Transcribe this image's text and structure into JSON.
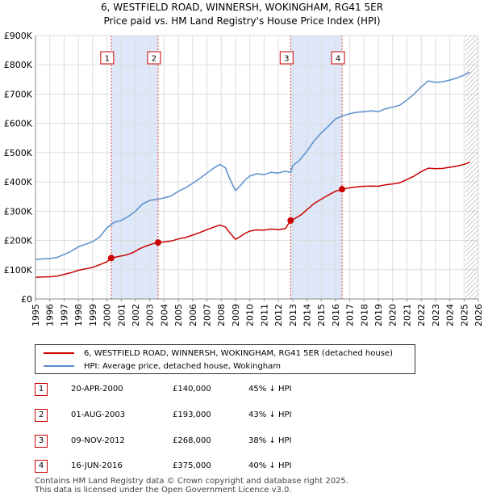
{
  "title_line1": "6, WESTFIELD ROAD, WINNERSH, WOKINGHAM, RG41 5ER",
  "title_line2": "Price paid vs. HM Land Registry's House Price Index (HPI)",
  "colors": {
    "price_line": "#cc0000",
    "hpi_line": "#5b8ecc",
    "shade": "#dde7f7",
    "grid": "#dddddd",
    "vline": "#dd4444",
    "hatch": "#999999"
  },
  "chart_data": {
    "type": "line",
    "xlim": [
      1995,
      2026
    ],
    "ylim": [
      0,
      900000
    ],
    "y_ticks": [
      {
        "value": 0,
        "label": "£0"
      },
      {
        "value": 100000,
        "label": "£100K"
      },
      {
        "value": 200000,
        "label": "£200K"
      },
      {
        "value": 300000,
        "label": "£300K"
      },
      {
        "value": 400000,
        "label": "£400K"
      },
      {
        "value": 500000,
        "label": "£500K"
      },
      {
        "value": 600000,
        "label": "£600K"
      },
      {
        "value": 700000,
        "label": "£700K"
      },
      {
        "value": 800000,
        "label": "£800K"
      },
      {
        "value": 900000,
        "label": "£900K"
      }
    ],
    "x_ticks": [
      "1995",
      "1996",
      "1997",
      "1998",
      "1999",
      "2000",
      "2001",
      "2002",
      "2003",
      "2004",
      "2005",
      "2006",
      "2007",
      "2008",
      "2009",
      "2010",
      "2011",
      "2012",
      "2013",
      "2014",
      "2015",
      "2016",
      "2017",
      "2018",
      "2019",
      "2020",
      "2021",
      "2022",
      "2023",
      "2024",
      "2025",
      "2026"
    ],
    "shaded_ranges": [
      [
        2000.3,
        2003.58
      ],
      [
        2012.86,
        2016.46
      ]
    ],
    "forecast_from": 2025.1,
    "series": [
      {
        "name": "HPI: Average price, detached house, Wokingham",
        "x": [
          1995.0,
          1995.5,
          1996.0,
          1996.5,
          1997.0,
          1997.5,
          1998.0,
          1998.5,
          1999.0,
          1999.5,
          2000.0,
          2000.5,
          2001.0,
          2001.5,
          2002.0,
          2002.5,
          2003.0,
          2003.5,
          2004.0,
          2004.5,
          2005.0,
          2005.5,
          2006.0,
          2006.5,
          2007.0,
          2007.5,
          2007.9,
          2008.3,
          2008.6,
          2009.0,
          2009.3,
          2009.7,
          2010.0,
          2010.5,
          2011.0,
          2011.5,
          2012.0,
          2012.5,
          2012.86,
          2013.0,
          2013.5,
          2014.0,
          2014.5,
          2015.0,
          2015.5,
          2016.0,
          2016.46,
          2017.0,
          2017.5,
          2018.0,
          2018.5,
          2019.0,
          2019.5,
          2020.0,
          2020.5,
          2021.0,
          2021.5,
          2022.0,
          2022.5,
          2023.0,
          2023.5,
          2024.0,
          2024.5,
          2025.0,
          2025.4
        ],
        "values": [
          135000,
          137000,
          138000,
          142000,
          152000,
          163000,
          178000,
          187000,
          196000,
          212000,
          243000,
          262000,
          268000,
          282000,
          300000,
          325000,
          337000,
          340000,
          345000,
          352000,
          368000,
          380000,
          395000,
          412000,
          430000,
          448000,
          460000,
          448000,
          410000,
          370000,
          385000,
          408000,
          420000,
          428000,
          425000,
          433000,
          430000,
          437000,
          432000,
          455000,
          475000,
          505000,
          540000,
          567000,
          590000,
          615000,
          625000,
          633000,
          638000,
          640000,
          643000,
          640000,
          650000,
          655000,
          662000,
          680000,
          700000,
          725000,
          745000,
          740000,
          742000,
          748000,
          755000,
          765000,
          775000
        ]
      },
      {
        "name": "6, WESTFIELD ROAD, WINNERSH, WOKINGHAM, RG41 5ER (detached house)",
        "x": [
          1995.0,
          1995.5,
          1996.0,
          1996.5,
          1997.0,
          1997.5,
          1998.0,
          1998.5,
          1999.0,
          1999.5,
          2000.0,
          2000.3,
          2000.8,
          2001.3,
          2001.8,
          2002.3,
          2002.8,
          2003.3,
          2003.58,
          2004.0,
          2004.5,
          2005.0,
          2005.5,
          2006.0,
          2006.5,
          2007.0,
          2007.5,
          2007.9,
          2008.3,
          2008.6,
          2009.0,
          2009.3,
          2009.7,
          2010.0,
          2010.5,
          2011.0,
          2011.5,
          2012.0,
          2012.5,
          2012.86,
          2013.2,
          2013.6,
          2014.0,
          2014.5,
          2015.0,
          2015.5,
          2016.0,
          2016.46,
          2017.0,
          2017.5,
          2018.0,
          2018.5,
          2019.0,
          2019.5,
          2020.0,
          2020.5,
          2021.0,
          2021.5,
          2022.0,
          2022.5,
          2023.0,
          2023.5,
          2024.0,
          2024.5,
          2025.0,
          2025.4
        ],
        "values": [
          74000,
          75000,
          76000,
          78000,
          84000,
          90000,
          98000,
          103000,
          108000,
          117000,
          127000,
          140000,
          145000,
          150000,
          158000,
          172000,
          182000,
          190000,
          193000,
          195000,
          198000,
          205000,
          210000,
          218000,
          227000,
          237000,
          246000,
          253000,
          246000,
          226000,
          204000,
          212000,
          225000,
          232000,
          236000,
          235000,
          239000,
          237000,
          241000,
          268000,
          276000,
          288000,
          305000,
          326000,
          341000,
          355000,
          368000,
          375000,
          380000,
          383000,
          385000,
          386000,
          385000,
          390000,
          393000,
          397000,
          408000,
          420000,
          435000,
          447000,
          445000,
          446000,
          450000,
          454000,
          460000,
          467000
        ]
      }
    ],
    "sales": [
      {
        "id": "1",
        "x": 2000.3,
        "value": 140000
      },
      {
        "id": "2",
        "x": 2003.58,
        "value": 193000
      },
      {
        "id": "3",
        "x": 2012.86,
        "value": 268000
      },
      {
        "id": "4",
        "x": 2016.46,
        "value": 375000
      }
    ]
  },
  "legend": {
    "price_label": "6, WESTFIELD ROAD, WINNERSH, WOKINGHAM, RG41 5ER (detached house)",
    "hpi_label": "HPI: Average price, detached house, Wokingham"
  },
  "sales_table": [
    {
      "id": "1",
      "date": "20-APR-2000",
      "price": "£140,000",
      "hpi": "45% ↓ HPI"
    },
    {
      "id": "2",
      "date": "01-AUG-2003",
      "price": "£193,000",
      "hpi": "43% ↓ HPI"
    },
    {
      "id": "3",
      "date": "09-NOV-2012",
      "price": "£268,000",
      "hpi": "38% ↓ HPI"
    },
    {
      "id": "4",
      "date": "16-JUN-2016",
      "price": "£375,000",
      "hpi": "40% ↓ HPI"
    }
  ],
  "footer": {
    "line1": "Contains HM Land Registry data © Crown copyright and database right 2025.",
    "line2": "This data is licensed under the Open Government Licence v3.0."
  }
}
